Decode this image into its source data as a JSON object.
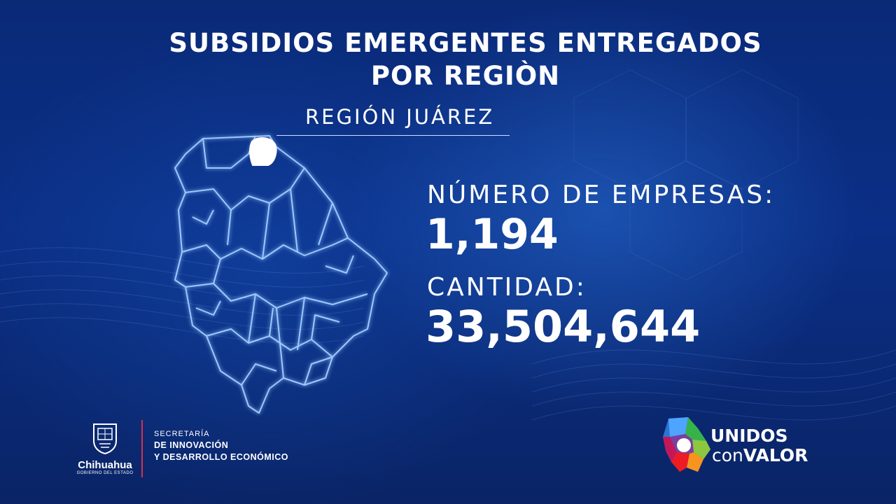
{
  "title": {
    "line1": "SUBSIDIOS EMERGENTES ENTREGADOS",
    "line2": "POR REGIÒN"
  },
  "region": {
    "label": "REGIÓN JUÁREZ"
  },
  "stats": {
    "empresas_label": "NÚMERO DE EMPRESAS:",
    "empresas_value": "1,194",
    "cantidad_label": "CANTIDAD:",
    "cantidad_value": "33,504,644"
  },
  "footer": {
    "gov_name": "Chihuahua",
    "gov_sub": "GOBIERNO DEL ESTADO",
    "secretaria_l1": "SECRETARÍA",
    "secretaria_l2": "DE INNOVACIÓN",
    "secretaria_l3": "Y DESARROLLO ECONÓMICO",
    "campaign_l1": "UNIDOS",
    "campaign_l2a": "con",
    "campaign_l2b": "VALOR"
  },
  "colors": {
    "background": "#0b2f86",
    "map_glow": "#7fb6ff",
    "highlight_region": "#ffffff",
    "divider": "#d9304a"
  },
  "icons": {
    "map": "chihuahua-state-map",
    "seal": "state-seal-icon",
    "campaign": "colorful-state-logo-icon"
  }
}
